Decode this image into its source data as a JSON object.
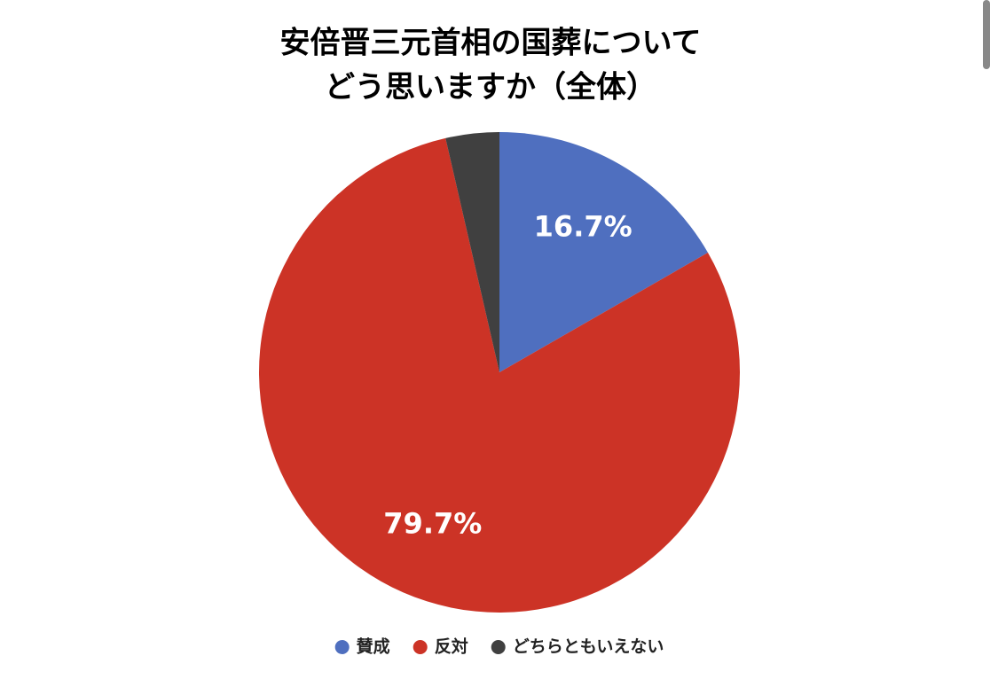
{
  "chart_data": {
    "type": "pie",
    "title": [
      "安倍晋三元首相の国葬について",
      "どう思いますか（全体）"
    ],
    "categories": [
      "賛成",
      "反対",
      "どちらともいえない"
    ],
    "values": [
      16.7,
      79.7,
      3.6
    ],
    "value_labels": [
      "16.7%",
      "79.7%",
      null
    ],
    "colors": [
      "#4f6fbf",
      "#cc3326",
      "#404040"
    ],
    "legend": "bottom"
  }
}
